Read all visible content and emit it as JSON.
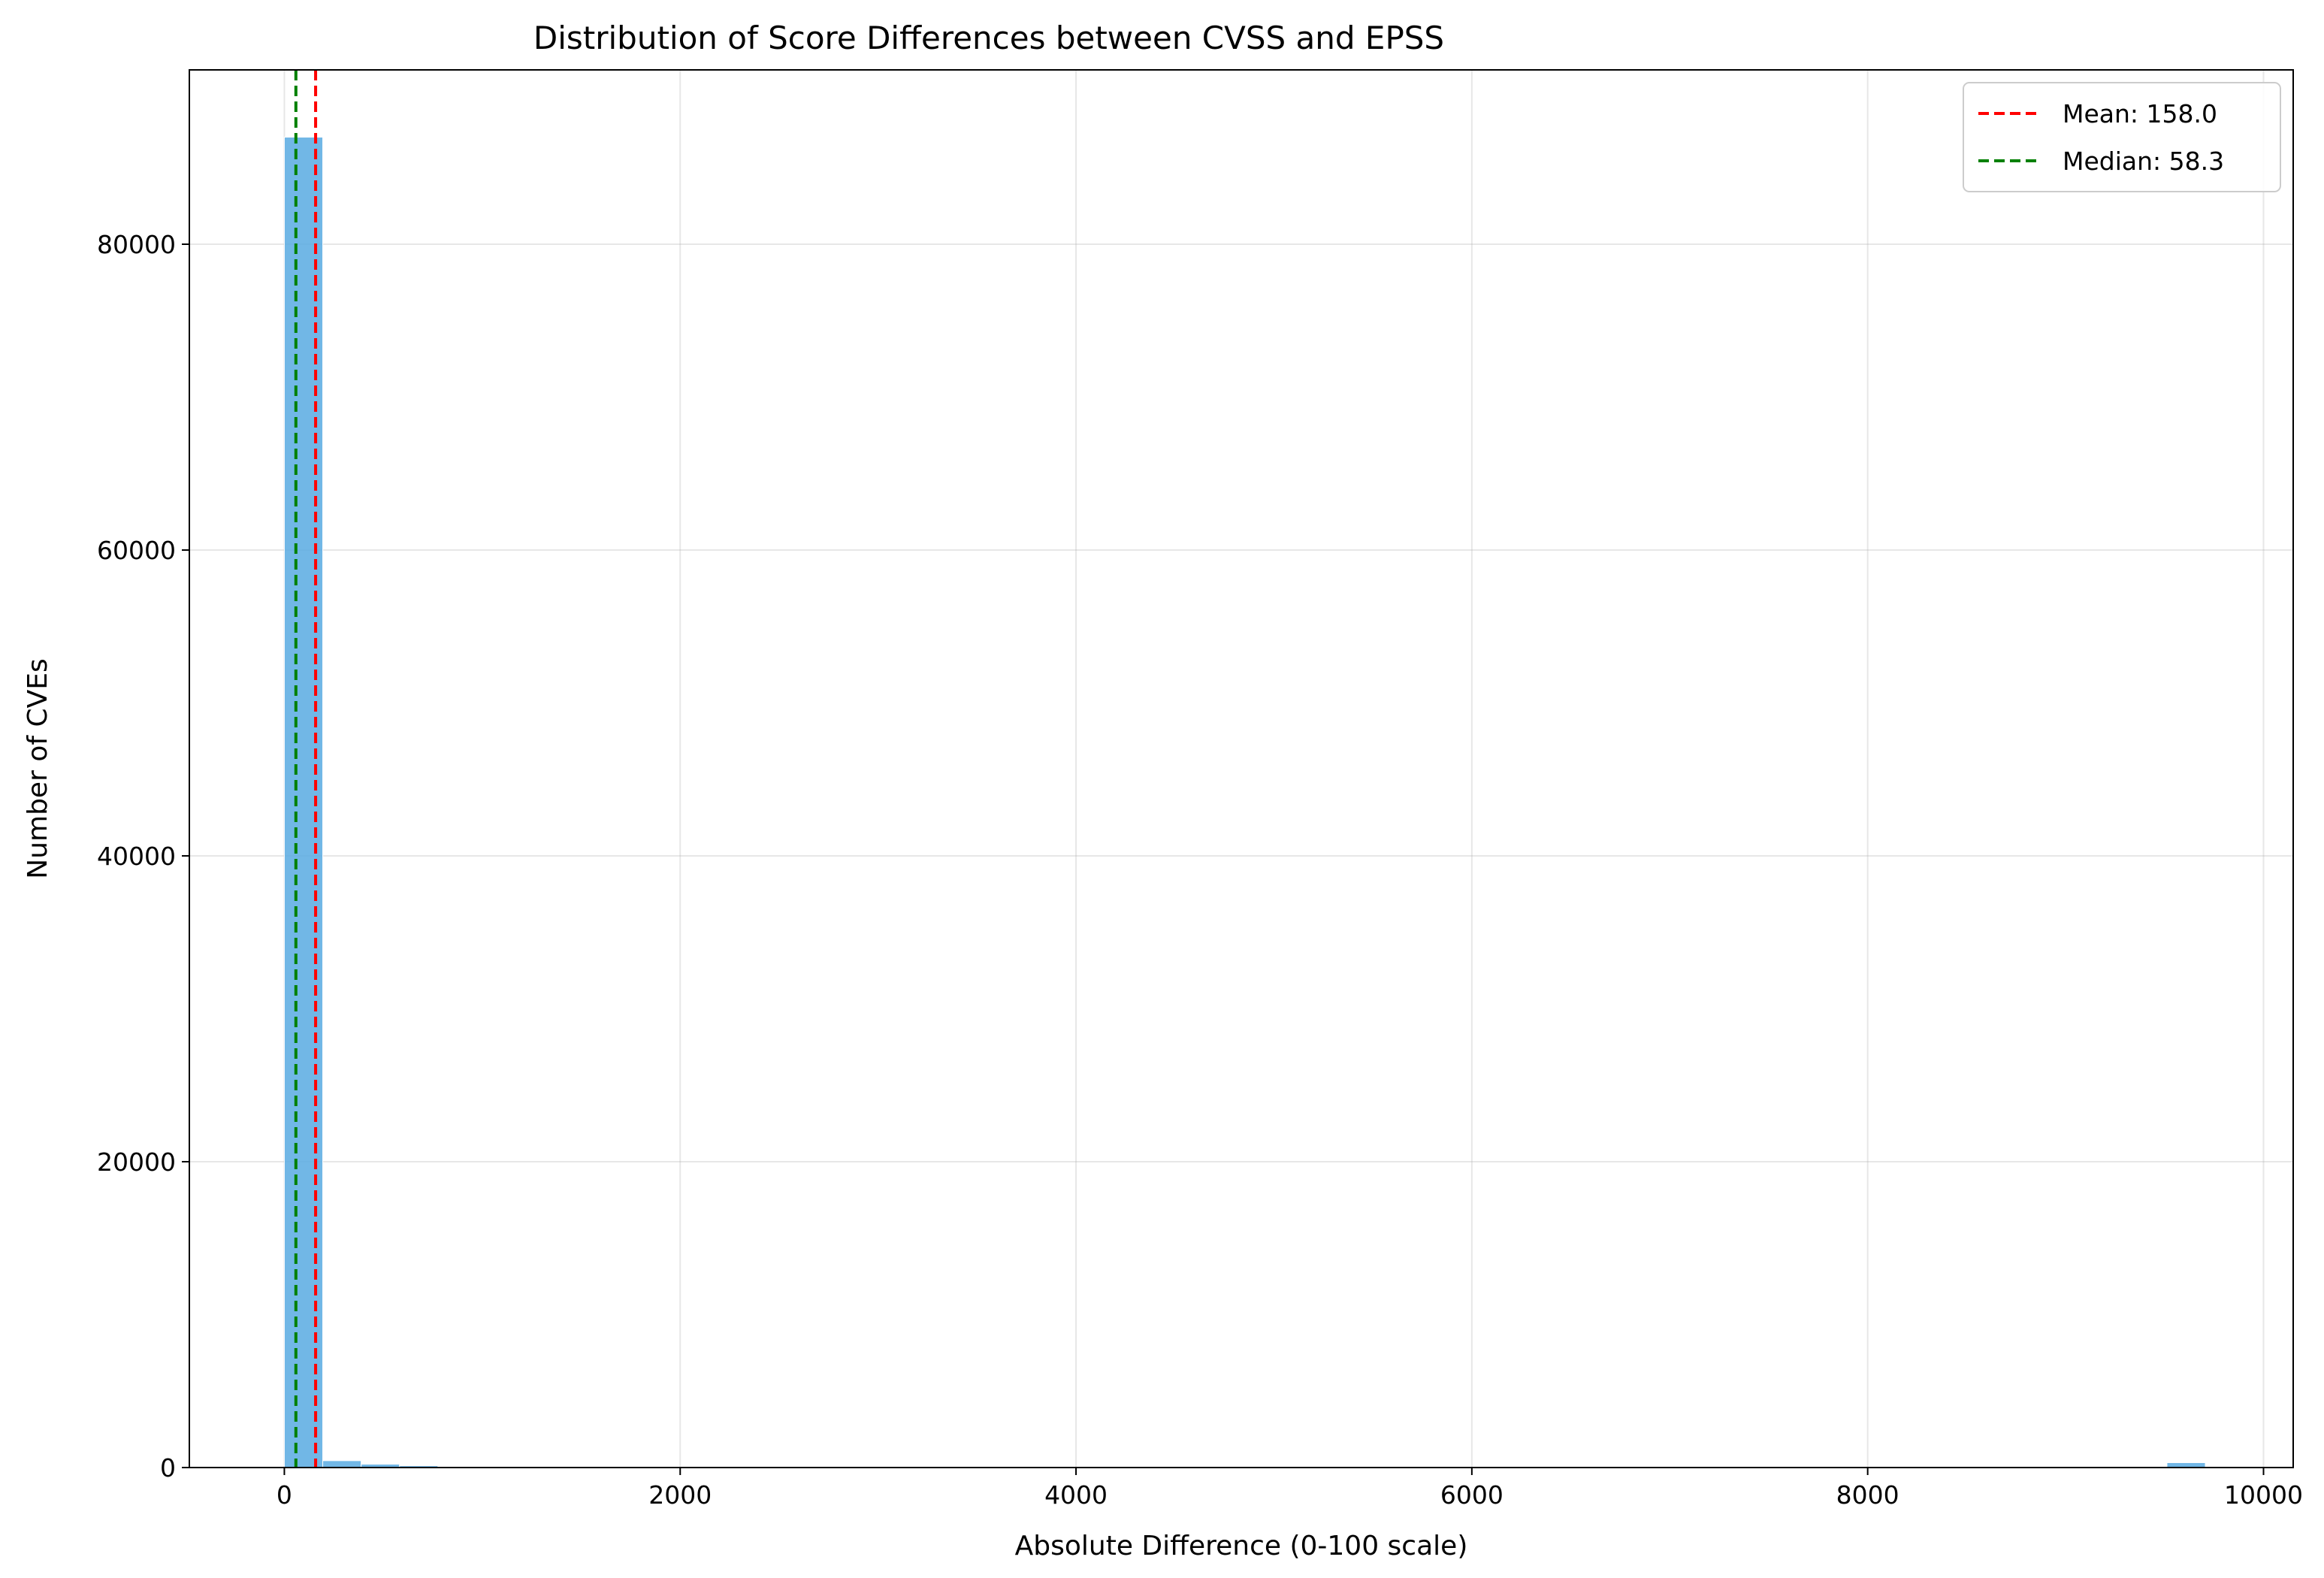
{
  "chart_data": {
    "type": "bar",
    "title": "Distribution of Score Differences between CVSS and EPSS",
    "xlabel": "Absolute Difference (0-100 scale)",
    "ylabel": "Number of CVEs",
    "xlim": [
      -480,
      10150
    ],
    "ylim": [
      0,
      91400
    ],
    "xticks": [
      0,
      2000,
      4000,
      6000,
      8000,
      10000
    ],
    "yticks": [
      0,
      20000,
      40000,
      60000,
      80000
    ],
    "grid": true,
    "bar_color": "#5DADE2",
    "bins": [
      {
        "start": 0,
        "end": 194,
        "count": 87000
      },
      {
        "start": 194,
        "end": 388,
        "count": 450
      },
      {
        "start": 388,
        "end": 582,
        "count": 220
      },
      {
        "start": 582,
        "end": 776,
        "count": 120
      },
      {
        "start": 776,
        "end": 970,
        "count": 60
      },
      {
        "start": 970,
        "end": 1164,
        "count": 30
      },
      {
        "start": 9512,
        "end": 9706,
        "count": 320
      }
    ],
    "reference_lines": [
      {
        "name": "Mean",
        "value": 158.0,
        "label": "Mean: 158.0",
        "color": "#FF0000",
        "style": "dashed"
      },
      {
        "name": "Median",
        "value": 58.3,
        "label": "Median: 58.3",
        "color": "#008000",
        "style": "dashed"
      }
    ],
    "legend": {
      "placement": "top-right",
      "entries": [
        "Mean: 158.0",
        "Median: 58.3"
      ]
    }
  }
}
